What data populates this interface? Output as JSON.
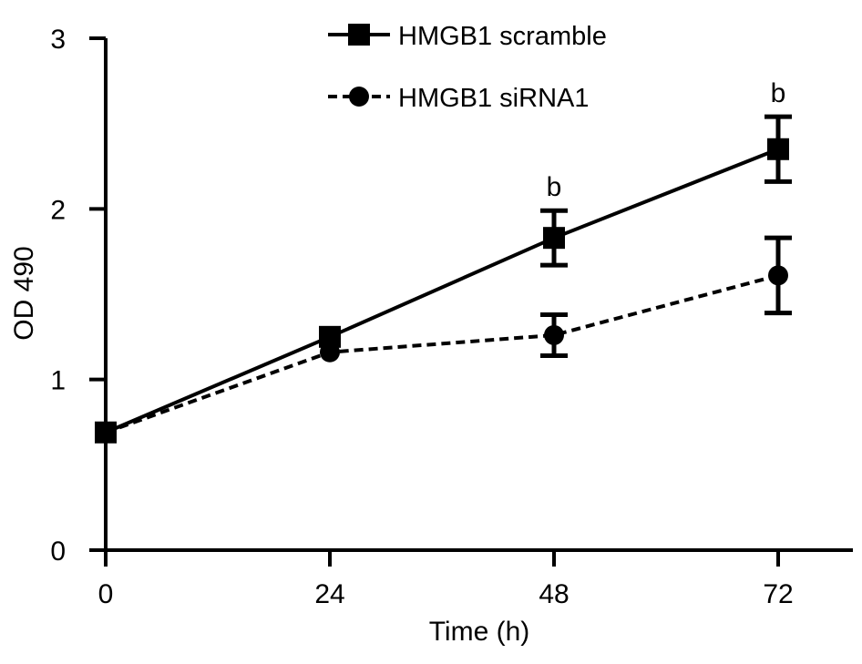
{
  "chart_data": {
    "type": "line",
    "xlabel": "Time (h)",
    "ylabel": "OD 490",
    "x": [
      0,
      24,
      48,
      72
    ],
    "xlim": [
      0,
      80
    ],
    "ylim": [
      0,
      3
    ],
    "xticks": [
      "0",
      "24",
      "48",
      "72"
    ],
    "yticks": [
      "0",
      "1",
      "2",
      "3"
    ],
    "grid": false,
    "legend_position": "top-center",
    "series": [
      {
        "name": "HMGB1 scramble",
        "marker": "square",
        "line_style": "solid",
        "color": "#000000",
        "values": [
          0.69,
          1.25,
          1.83,
          2.35
        ],
        "error": [
          0.0,
          0.0,
          0.16,
          0.19
        ]
      },
      {
        "name": "HMGB1 siRNA1",
        "marker": "circle",
        "line_style": "dashed",
        "color": "#000000",
        "values": [
          0.69,
          1.16,
          1.26,
          1.61
        ],
        "error": [
          0.0,
          0.0,
          0.12,
          0.22
        ]
      }
    ],
    "annotations": [
      {
        "text": "b",
        "x": 48
      },
      {
        "text": "b",
        "x": 72
      }
    ]
  }
}
